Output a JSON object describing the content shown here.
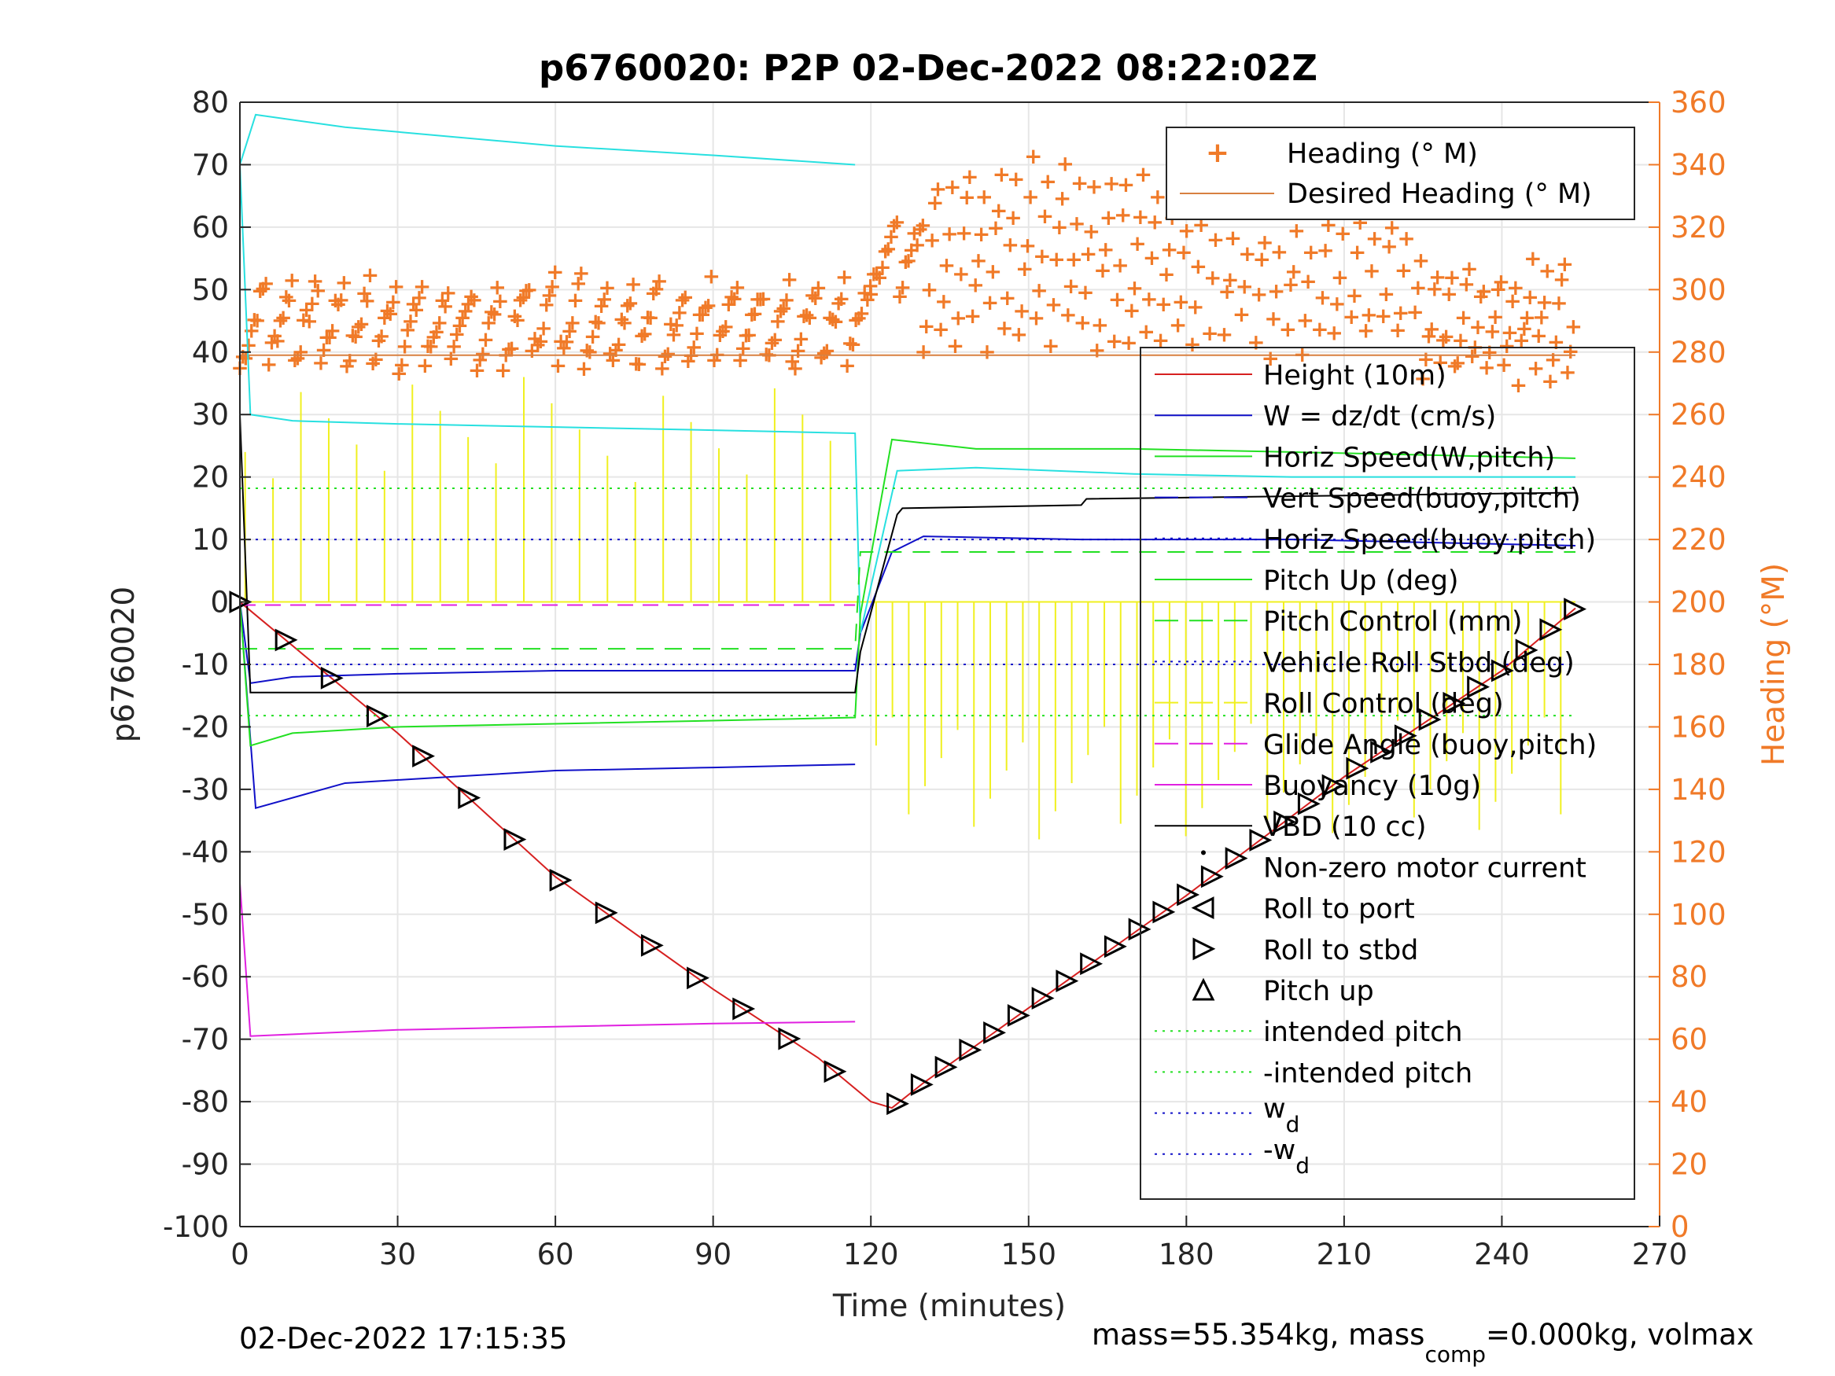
{
  "chart_data": {
    "type": "line",
    "title": "p6760020: P2P 02-Dec-2022 08:22:02Z",
    "xlabel": "Time (minutes)",
    "ylabel": "p6760020",
    "ylabel_right": "Heading (°M)",
    "xlim": [
      0,
      270
    ],
    "ylim": [
      -100,
      80
    ],
    "ylim_right": [
      0,
      360
    ],
    "x_ticks": [
      "0",
      "30",
      "60",
      "90",
      "120",
      "150",
      "180",
      "210",
      "240",
      "270"
    ],
    "y_ticks": [
      "80",
      "70",
      "60",
      "50",
      "40",
      "30",
      "20",
      "10",
      "0",
      "-10",
      "-20",
      "-30",
      "-40",
      "-50",
      "-60",
      "-70",
      "-80",
      "-90",
      "-100"
    ],
    "y_ticks_right": [
      "360",
      "340",
      "320",
      "300",
      "280",
      "260",
      "240",
      "220",
      "200",
      "180",
      "160",
      "140",
      "120",
      "100",
      "80",
      "60",
      "40",
      "20",
      "0"
    ],
    "grid": true,
    "colors": {
      "heading": "#f07a28",
      "height": "#d62020",
      "w": "#1010c8",
      "horiz_speed": "#28e0e0",
      "vert_speed": "#1010c8",
      "pitch": "#22e022",
      "roll": "#f0f020",
      "glide": "#e020e0",
      "buoyancy": "#e020e0",
      "vbd": "#000000",
      "intended_pitch": "#22e022",
      "wd": "#1010c8",
      "right_axis": "#f07a28"
    },
    "legend_heading": [
      "Heading (° M)",
      "Desired Heading (° M)"
    ],
    "legend_main": [
      "Height (10m)",
      "W = dz/dt (cm/s)",
      "Horiz Speed(W,pitch)",
      "Vert Speed(buoy,pitch)",
      "Horiz Speed(buoy,pitch)",
      "Pitch Up (deg)",
      "Pitch Control (mm)",
      "Vehicle Roll Stbd (deg)",
      "Roll Control (deg)",
      "Glide Angle (buoy,pitch)",
      "Buoyancy (10g)",
      "VBD (10 cc)",
      "Non-zero motor current",
      "Roll to port",
      "Roll to stbd",
      "Pitch up",
      "intended pitch",
      "-intended pitch"
    ],
    "legend_wd": "w",
    "legend_wd_sub": "d",
    "legend_neg_wd": "-w",
    "legend_neg_wd_sub": "d",
    "series": [
      {
        "name": "Height (10m)",
        "x": [
          0,
          30,
          60,
          90,
          110,
          120,
          124,
          130,
          150,
          180,
          210,
          240,
          254
        ],
        "y": [
          0,
          -21,
          -44,
          -62,
          -73,
          -80,
          -81,
          -77,
          -65,
          -47,
          -28,
          -11,
          -1
        ]
      },
      {
        "name": "W = dz/dt (cm/s)",
        "x": [
          0,
          2,
          10,
          30,
          60,
          90,
          117,
          118,
          124,
          130,
          160,
          200,
          254
        ],
        "y": [
          0,
          -13,
          -12,
          -11.5,
          -11,
          -11,
          -11,
          -5,
          8,
          10.5,
          10,
          10,
          9
        ]
      },
      {
        "name": "Horiz Speed(W,pitch)",
        "x": [
          0,
          2,
          10,
          30,
          60,
          90,
          117,
          118,
          125,
          140,
          170,
          200,
          254
        ],
        "y": [
          70,
          30,
          29,
          28.5,
          28,
          27.5,
          27,
          -5,
          21,
          21.5,
          20.5,
          20,
          20
        ]
      },
      {
        "name": "Vert Speed(buoy,pitch)",
        "x": [
          0,
          3,
          20,
          40,
          60,
          90,
          117
        ],
        "y": [
          0,
          -33,
          -29,
          -28,
          -27,
          -26.5,
          -26
        ]
      },
      {
        "name": "Horiz Speed(buoy,pitch)",
        "x": [
          0,
          3,
          20,
          40,
          60,
          90,
          117
        ],
        "y": [
          70,
          78,
          76,
          74.5,
          73,
          71.5,
          70
        ]
      },
      {
        "name": "Pitch Up (deg)",
        "x": [
          0,
          2,
          10,
          30,
          60,
          90,
          117,
          118,
          124,
          140,
          170,
          200,
          254
        ],
        "y": [
          0,
          -23,
          -21,
          -20,
          -19.5,
          -19,
          -18.5,
          -2,
          26,
          24.5,
          24.5,
          24,
          23
        ]
      },
      {
        "name": "Pitch Control (mm)",
        "x": [
          0,
          117,
          118,
          254
        ],
        "y": [
          -7.5,
          -7.5,
          8,
          8
        ]
      },
      {
        "name": "Buoyancy (10g)",
        "x": [
          0,
          2,
          30,
          60,
          90,
          117
        ],
        "y": [
          -45,
          -69.5,
          -68.5,
          -68,
          -67.5,
          -67.2
        ]
      },
      {
        "name": "VBD (10 cc)",
        "x": [
          0,
          2,
          117,
          118,
          125,
          126,
          160,
          161,
          254
        ],
        "y": [
          30,
          -14.5,
          -14.5,
          -8,
          14,
          15,
          15.5,
          16.5,
          17.5
        ]
      },
      {
        "name": "Glide Angle (buoy,pitch)",
        "x": [
          0,
          117
        ],
        "y": [
          -0.5,
          -0.5
        ]
      },
      {
        "name": "intended pitch",
        "x": [
          0,
          254
        ],
        "y": [
          18.2,
          18.2
        ]
      },
      {
        "name": "-intended pitch",
        "x": [
          0,
          254
        ],
        "y": [
          -18.2,
          -18.2
        ]
      },
      {
        "name": "w",
        "x": [
          0,
          254
        ],
        "y": [
          10,
          10
        ]
      },
      {
        "name": "-w",
        "x": [
          0,
          254
        ],
        "y": [
          -10,
          -10
        ]
      }
    ],
    "heading_axis": "right",
    "heading_desired": 279,
    "heading_ranges": [
      {
        "x0": 0,
        "x1": 120,
        "lo": 270,
        "hi": 305
      },
      {
        "x0": 120,
        "x1": 130,
        "lo": 295,
        "hi": 325
      },
      {
        "x0": 130,
        "x1": 225,
        "lo": 270,
        "hi": 345
      },
      {
        "x0": 225,
        "x1": 254,
        "lo": 265,
        "hi": 310
      }
    ],
    "annotations": {
      "footer_left": "02-Dec-2022 17:15:35",
      "footer_right_pre": "mass=55.354kg, mass",
      "footer_right_sub": "comp",
      "footer_right_post": "=0.000kg, volmax"
    }
  }
}
